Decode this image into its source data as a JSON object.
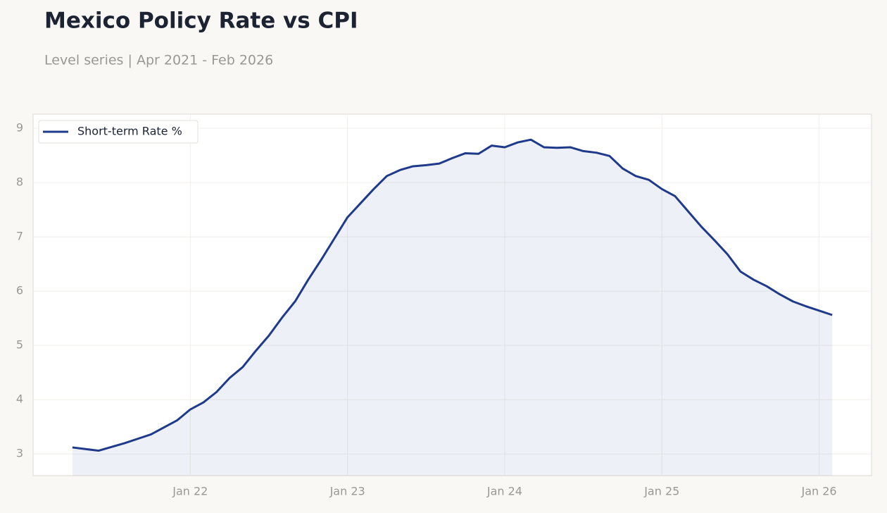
{
  "chart_data": {
    "type": "line",
    "title": "Mexico Policy Rate vs CPI",
    "subtitle": "Level series | Apr 2021 - Feb 2026",
    "x": [
      "2021-04",
      "2021-05",
      "2021-06",
      "2021-07",
      "2021-08",
      "2021-09",
      "2021-10",
      "2021-11",
      "2021-12",
      "2022-01",
      "2022-02",
      "2022-03",
      "2022-04",
      "2022-05",
      "2022-06",
      "2022-07",
      "2022-08",
      "2022-09",
      "2022-10",
      "2022-11",
      "2022-12",
      "2023-01",
      "2023-02",
      "2023-03",
      "2023-04",
      "2023-05",
      "2023-06",
      "2023-07",
      "2023-08",
      "2023-09",
      "2023-10",
      "2023-11",
      "2023-12",
      "2024-01",
      "2024-02",
      "2024-03",
      "2024-04",
      "2024-05",
      "2024-06",
      "2024-07",
      "2024-08",
      "2024-09",
      "2024-10",
      "2024-11",
      "2024-12",
      "2025-01",
      "2025-02",
      "2025-03",
      "2025-04",
      "2025-05",
      "2025-06",
      "2025-07",
      "2025-08",
      "2025-09",
      "2025-10",
      "2025-11",
      "2025-12",
      "2026-01",
      "2026-02"
    ],
    "series": [
      {
        "name": "Short-term Rate %",
        "color": "#1f3a8a",
        "values": [
          3.12,
          3.09,
          3.06,
          3.13,
          3.2,
          3.28,
          3.36,
          3.49,
          3.62,
          3.82,
          3.95,
          4.14,
          4.4,
          4.6,
          4.9,
          5.18,
          5.51,
          5.81,
          6.21,
          6.58,
          6.97,
          7.36,
          7.62,
          7.88,
          8.12,
          8.23,
          8.3,
          8.32,
          8.35,
          8.45,
          8.54,
          8.53,
          8.68,
          8.65,
          8.74,
          8.79,
          8.65,
          8.64,
          8.65,
          8.58,
          8.55,
          8.49,
          8.26,
          8.12,
          8.05,
          7.88,
          7.75,
          7.47,
          7.19,
          6.94,
          6.68,
          6.36,
          6.21,
          6.09,
          5.94,
          5.81,
          5.72,
          5.64,
          5.56
        ]
      }
    ],
    "xlim": [
      "2021-01",
      "2026-05"
    ],
    "xticks": [
      {
        "value": "2022-01",
        "label": "Jan 22"
      },
      {
        "value": "2023-01",
        "label": "Jan 23"
      },
      {
        "value": "2024-01",
        "label": "Jan 24"
      },
      {
        "value": "2025-01",
        "label": "Jan 25"
      },
      {
        "value": "2026-01",
        "label": "Jan 26"
      }
    ],
    "ylim": [
      2.6,
      9.26
    ],
    "yticks": [
      3,
      4,
      5,
      6,
      7,
      8,
      9
    ],
    "grid": true,
    "area_fill": true,
    "legend": "upper-left"
  }
}
